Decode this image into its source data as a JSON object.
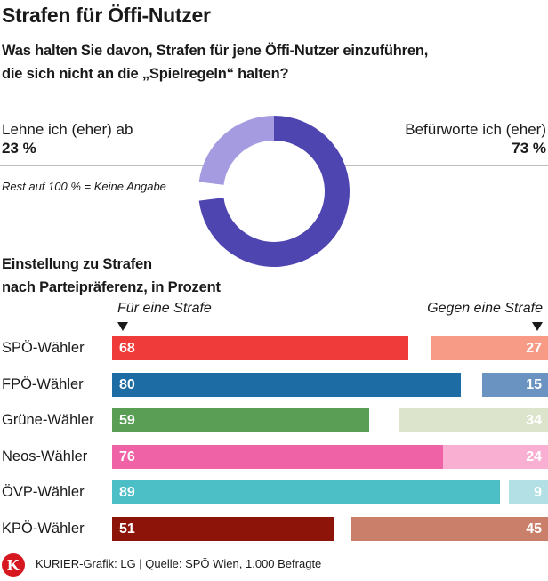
{
  "header": {
    "title": "Strafen für Öffi-Nutzer",
    "question_line1": "Was halten Sie davon, Strafen für jene Öffi-Nutzer einzuführen,",
    "question_line2": "die sich nicht  an die „Spielregeln“ halten?"
  },
  "donut": {
    "left_label": "Lehne ich (eher) ab",
    "left_value": "23 %",
    "right_label": "Befürworte ich (eher)",
    "right_value": "73 %",
    "note": "Rest auf 100 % = Keine Angabe",
    "colors": {
      "for": "#4f45b0",
      "against": "#a59be0"
    }
  },
  "bars_section": {
    "heading_line1": "Einstellung zu Strafen",
    "heading_line2": "nach Parteipräferenz, in Prozent",
    "legend_for": "Für eine Strafe",
    "legend_against": "Gegen eine Strafe",
    "rows": [
      {
        "label": "SPÖ-Wähler",
        "for": "68",
        "against": "27",
        "color_for": "#ef3b39",
        "color_against": "#f79a86"
      },
      {
        "label": "FPÖ-Wähler",
        "for": "80",
        "against": "15",
        "color_for": "#1d6ca3",
        "color_against": "#6a93c2"
      },
      {
        "label": "Grüne-Wähler",
        "for": "59",
        "against": "34",
        "color_for": "#5a9e55",
        "color_against": "#dce5cc"
      },
      {
        "label": "Neos-Wähler",
        "for": "76",
        "against": "24",
        "color_for": "#f062a6",
        "color_against": "#f8afd2"
      },
      {
        "label": "ÖVP-Wähler",
        "for": "89",
        "against": "9",
        "color_for": "#4bbec6",
        "color_against": "#b3e0e4"
      },
      {
        "label": "KPÖ-Wähler",
        "for": "51",
        "against": "45",
        "color_for": "#8c1409",
        "color_against": "#c97f6a"
      }
    ]
  },
  "footer": {
    "logo_letter": "K",
    "credit": "KURIER-Grafik: LG | Quelle: SPÖ Wien, 1.000 Befragte"
  },
  "chart_data": [
    {
      "type": "pie",
      "title": "Was halten Sie davon, Strafen für jene Öffi-Nutzer einzuführen, die sich nicht an die „Spielregeln“ halten?",
      "categories": [
        "Befürworte ich (eher)",
        "Lehne ich (eher) ab",
        "Keine Angabe"
      ],
      "values": [
        73,
        23,
        4
      ],
      "unit": "%",
      "annotations": [
        "Rest auf 100 % = Keine Angabe"
      ],
      "style": "donut"
    },
    {
      "type": "bar",
      "orientation": "horizontal",
      "title": "Einstellung zu Strafen nach Parteipräferenz, in Prozent",
      "categories": [
        "SPÖ-Wähler",
        "FPÖ-Wähler",
        "Grüne-Wähler",
        "Neos-Wähler",
        "ÖVP-Wähler",
        "KPÖ-Wähler"
      ],
      "series": [
        {
          "name": "Für eine Strafe",
          "values": [
            68,
            80,
            59,
            76,
            89,
            51
          ]
        },
        {
          "name": "Gegen eine Strafe",
          "values": [
            27,
            15,
            34,
            24,
            9,
            45
          ]
        }
      ],
      "xlabel": "",
      "ylabel": "",
      "xlim": [
        0,
        100
      ],
      "legend_position": "top",
      "grid": false
    }
  ]
}
